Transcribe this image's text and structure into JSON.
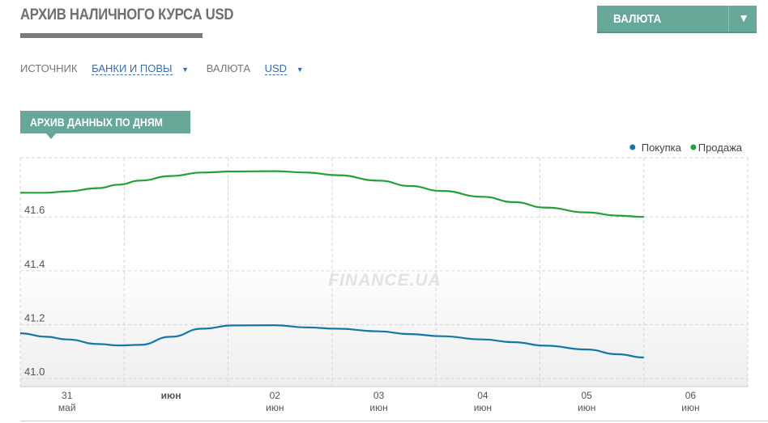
{
  "header": {
    "title": "АРХИВ НАЛИЧНОГО КУРСА USD",
    "currency_button": "ВАЛЮТА",
    "currency_arrow_icon": "triangle-down-icon"
  },
  "filters": {
    "source_label": "ИСТОЧНИК",
    "source_value": "БАНКИ И ПОВЫ",
    "currency_label": "ВАЛЮТА",
    "currency_value": "USD"
  },
  "section_tab": "АРХИВ ДАННЫХ ПО ДНЯМ",
  "watermark": "FINANCE.UA",
  "colors": {
    "accent": "#67a898",
    "buy": "#1477a8",
    "sell": "#22a03a",
    "link": "#3c6cb0"
  },
  "chart_data": {
    "type": "line",
    "y_ticks": [
      "41.0",
      "41.2",
      "41.4",
      "41.6"
    ],
    "ylim": [
      40.97,
      41.82
    ],
    "x_ticks": [
      {
        "top": "31",
        "bottom": "май",
        "x": 31.0
      },
      {
        "top": "июн",
        "bottom": "",
        "x": 32.0
      },
      {
        "top": "02",
        "bottom": "июн",
        "x": 33.0
      },
      {
        "top": "03",
        "bottom": "июн",
        "x": 34.0
      },
      {
        "top": "04",
        "bottom": "июн",
        "x": 35.0
      },
      {
        "top": "05",
        "bottom": "июн",
        "x": 36.0
      },
      {
        "top": "06",
        "bottom": "июн",
        "x": 37.0
      }
    ],
    "xlim": [
      30.55,
      37.55
    ],
    "legend_position": "top-right",
    "series": [
      {
        "name": "Покупка",
        "color": "#1477a8",
        "x": [
          30.55,
          30.8,
          31.0,
          31.3,
          31.5,
          31.7,
          32.0,
          32.3,
          32.6,
          33.0,
          33.3,
          33.6,
          34.0,
          34.3,
          34.6,
          35.0,
          35.3,
          35.6,
          36.0,
          36.3,
          36.55
        ],
        "y": [
          41.168,
          41.155,
          41.145,
          41.128,
          41.123,
          41.125,
          41.155,
          41.185,
          41.197,
          41.198,
          41.19,
          41.185,
          41.175,
          41.165,
          41.157,
          41.145,
          41.135,
          41.122,
          41.108,
          41.09,
          41.078
        ]
      },
      {
        "name": "Продажа",
        "color": "#22a03a",
        "x": [
          30.55,
          30.8,
          31.0,
          31.3,
          31.5,
          31.7,
          32.0,
          32.3,
          32.6,
          33.0,
          33.3,
          33.6,
          34.0,
          34.3,
          34.6,
          35.0,
          35.3,
          35.6,
          36.0,
          36.3,
          36.55
        ],
        "y": [
          41.69,
          41.69,
          41.695,
          41.707,
          41.72,
          41.735,
          41.752,
          41.765,
          41.769,
          41.77,
          41.765,
          41.755,
          41.735,
          41.715,
          41.697,
          41.675,
          41.655,
          41.635,
          41.617,
          41.605,
          41.6
        ]
      }
    ]
  }
}
